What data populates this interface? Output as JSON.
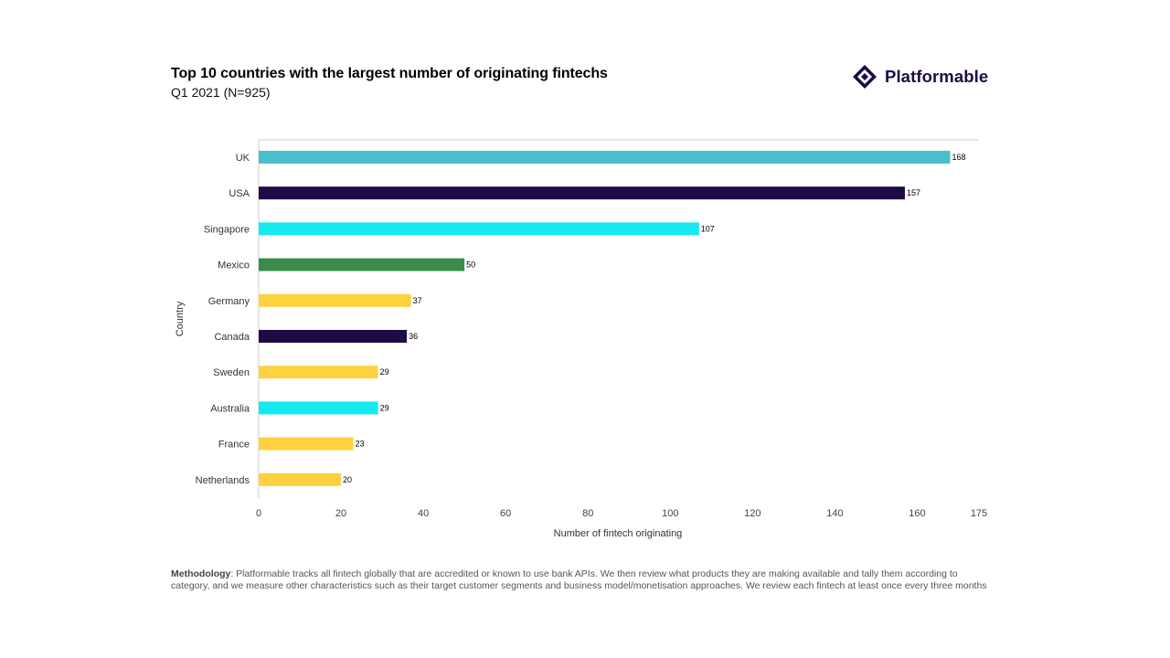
{
  "header": {
    "title": "Top 10 countries with the largest number of originating fintechs",
    "subtitle": "Q1 2021 (N=925)"
  },
  "brand": {
    "name": "Platformable",
    "color": "#1e0b45"
  },
  "chart_data": {
    "type": "bar",
    "orientation": "horizontal",
    "title": "Top 10 countries with the largest number of originating fintechs",
    "subtitle": "Q1 2021 (N=925)",
    "xlabel": "Number of fintech originating",
    "ylabel": "Country",
    "xlim": [
      0,
      175
    ],
    "xticks": [
      0,
      20,
      40,
      60,
      80,
      100,
      120,
      140,
      160,
      175
    ],
    "categories": [
      "UK",
      "USA",
      "Singapore",
      "Mexico",
      "Germany",
      "Canada",
      "Sweden",
      "Australia",
      "France",
      "Netherlands"
    ],
    "values": [
      168,
      157,
      107,
      50,
      37,
      36,
      29,
      29,
      23,
      20
    ],
    "colors": [
      "#4bbfcc",
      "#1e0b45",
      "#14eaf0",
      "#3b8c4a",
      "#fdd23e",
      "#1e0b45",
      "#fdd23e",
      "#14eaf0",
      "#fdd23e",
      "#fdd23e"
    ],
    "grid": false,
    "data_labels": true
  },
  "footer": {
    "methodology_label": "Methodology",
    "methodology_text": ": Platformable tracks all fintech globally that are accredited or known to use bank APIs. We then review what products they are making available and tally them according to category, and we measure other characteristics such as their target customer segments and business model/monetisation approaches. We review each fintech at least once every three months"
  }
}
